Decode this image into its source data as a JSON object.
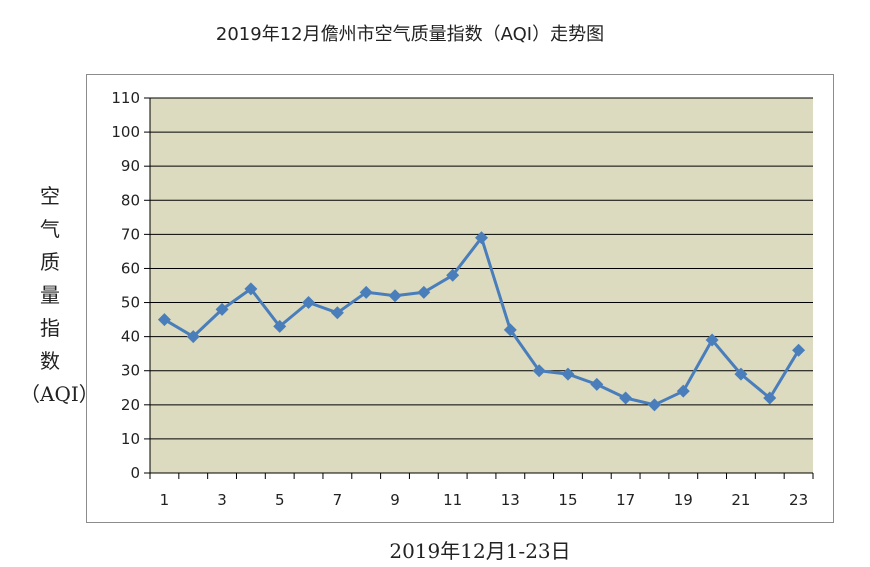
{
  "chart_data": {
    "type": "line",
    "title": "2019年12月儋州市空气质量指数（AQI）走势图",
    "ylabel_chars": [
      "空",
      "气",
      "质",
      "量",
      "指",
      "数",
      "（AQI）"
    ],
    "xlabel": "2019年12月1-23日",
    "x": [
      1,
      2,
      3,
      4,
      5,
      6,
      7,
      8,
      9,
      10,
      11,
      12,
      13,
      14,
      15,
      16,
      17,
      18,
      19,
      20,
      21,
      22,
      23
    ],
    "xtick_labels": [
      "1",
      "3",
      "5",
      "7",
      "9",
      "11",
      "13",
      "15",
      "17",
      "19",
      "21",
      "23"
    ],
    "ylim": [
      0,
      110
    ],
    "ytick_labels": [
      "0",
      "10",
      "20",
      "30",
      "40",
      "50",
      "60",
      "70",
      "80",
      "90",
      "100",
      "110"
    ],
    "series": [
      {
        "values": [
          45,
          40,
          48,
          54,
          43,
          50,
          47,
          53,
          52,
          53,
          58,
          69,
          42,
          30,
          29,
          26,
          22,
          20,
          24,
          39,
          29,
          22,
          36
        ]
      }
    ],
    "grid": true,
    "colors": {
      "line": "#4a7ebb",
      "plot_bg": "#dcdbc0",
      "grid": "#000000"
    }
  }
}
